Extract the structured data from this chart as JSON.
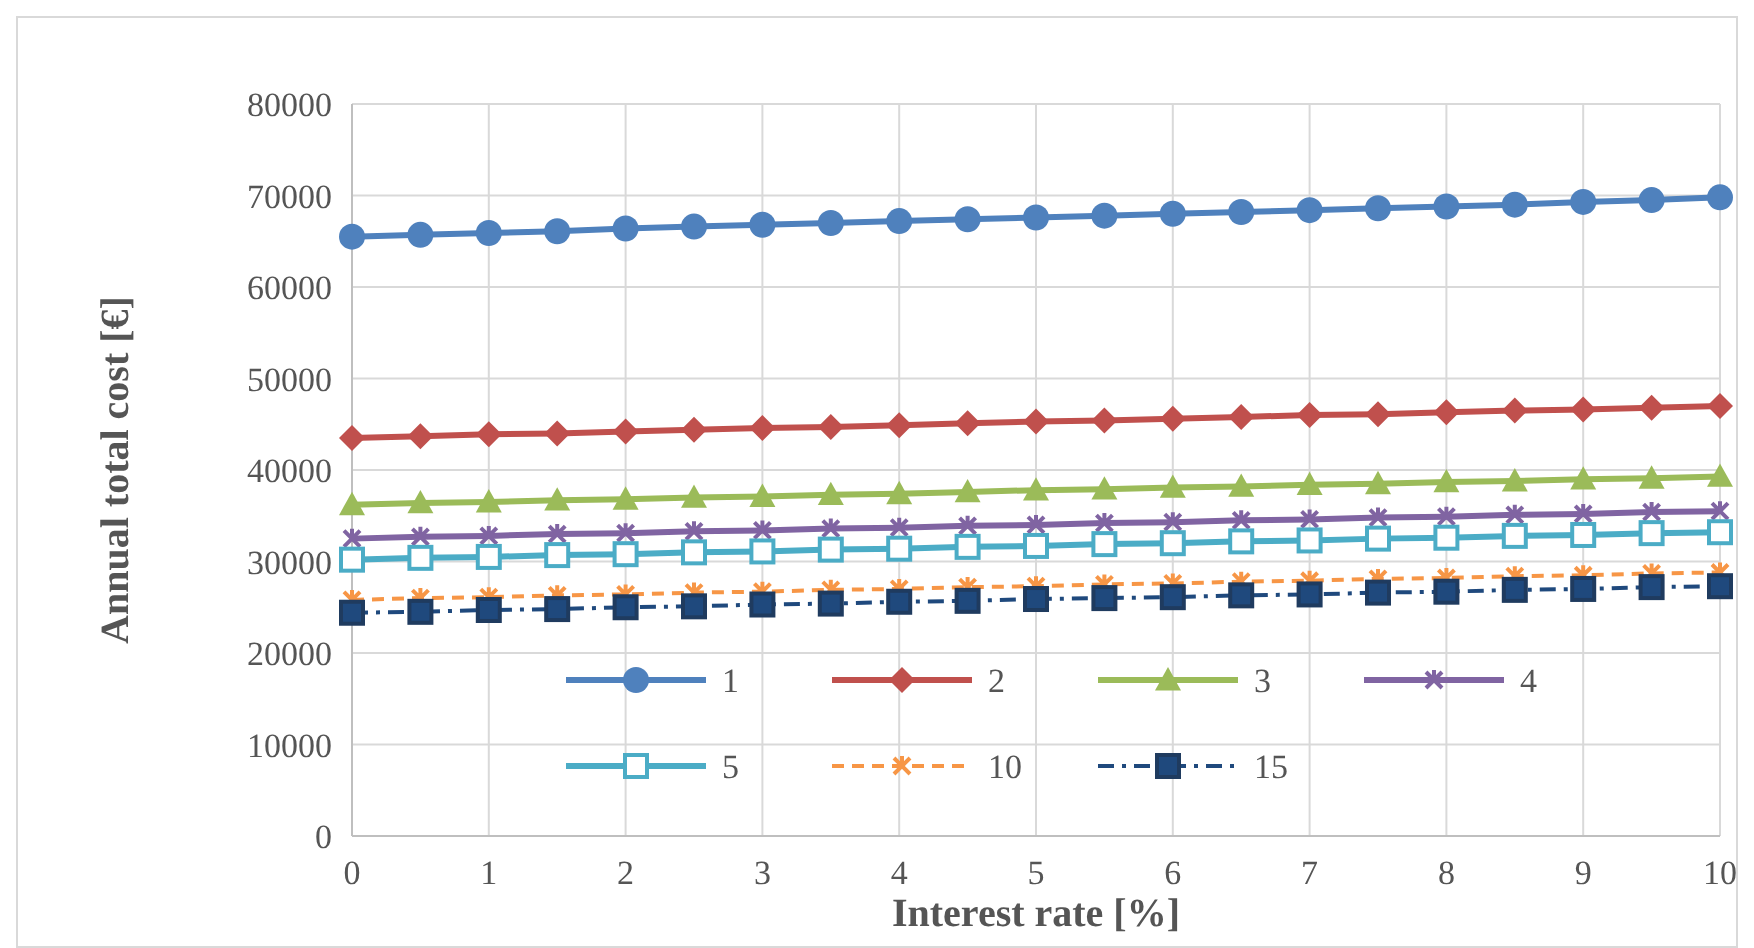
{
  "chart_data": {
    "type": "line",
    "xlabel": "Interest rate [%]",
    "ylabel": "Annual total cost [€]",
    "x": [
      0,
      0.5,
      1,
      1.5,
      2,
      2.5,
      3,
      3.5,
      4,
      4.5,
      5,
      5.5,
      6,
      6.5,
      7,
      7.5,
      8,
      8.5,
      9,
      9.5,
      10
    ],
    "xlim": [
      0,
      10
    ],
    "xticks": [
      0,
      1,
      2,
      3,
      4,
      5,
      6,
      7,
      8,
      9,
      10
    ],
    "ylim": [
      0,
      80000
    ],
    "yticks": [
      0,
      10000,
      20000,
      30000,
      40000,
      50000,
      60000,
      70000,
      80000
    ],
    "grid": true,
    "legend": "bottom",
    "series": [
      {
        "name": "1",
        "color": "#4f81bd",
        "marker": "circle",
        "line_style": "solid",
        "values": [
          65500,
          65700,
          65900,
          66100,
          66400,
          66600,
          66800,
          67000,
          67200,
          67400,
          67600,
          67800,
          68000,
          68200,
          68400,
          68600,
          68800,
          69000,
          69300,
          69500,
          69800
        ]
      },
      {
        "name": "2",
        "color": "#c0504d",
        "marker": "diamond",
        "line_style": "solid",
        "values": [
          43500,
          43700,
          43900,
          44000,
          44200,
          44400,
          44600,
          44700,
          44900,
          45100,
          45300,
          45400,
          45600,
          45800,
          46000,
          46100,
          46300,
          46500,
          46600,
          46800,
          47000
        ]
      },
      {
        "name": "3",
        "color": "#9bbb59",
        "marker": "triangle",
        "line_style": "solid",
        "values": [
          36200,
          36400,
          36500,
          36700,
          36800,
          37000,
          37100,
          37300,
          37400,
          37600,
          37800,
          37900,
          38100,
          38200,
          38400,
          38500,
          38700,
          38800,
          39000,
          39100,
          39300
        ]
      },
      {
        "name": "4",
        "color": "#8064a2",
        "marker": "cross",
        "line_style": "solid",
        "values": [
          32500,
          32700,
          32800,
          33000,
          33100,
          33300,
          33400,
          33600,
          33700,
          33900,
          34000,
          34200,
          34300,
          34500,
          34600,
          34800,
          34900,
          35100,
          35200,
          35400,
          35500
        ]
      },
      {
        "name": "5",
        "color": "#4bacc6",
        "marker": "square",
        "line_style": "solid",
        "values": [
          30200,
          30400,
          30500,
          30700,
          30800,
          31000,
          31100,
          31300,
          31400,
          31600,
          31700,
          31900,
          32000,
          32200,
          32300,
          32500,
          32600,
          32800,
          32900,
          33100,
          33200
        ]
      },
      {
        "name": "10",
        "color": "#f79646",
        "marker": "cross",
        "line_style": "dashed",
        "values": [
          25800,
          26000,
          26100,
          26300,
          26400,
          26600,
          26700,
          26900,
          27000,
          27200,
          27300,
          27500,
          27600,
          27800,
          27900,
          28100,
          28200,
          28400,
          28500,
          28700,
          28800
        ]
      },
      {
        "name": "15",
        "color": "#1f497d",
        "marker": "square",
        "line_style": "dashdot",
        "values": [
          24400,
          24500,
          24700,
          24800,
          25000,
          25100,
          25300,
          25400,
          25600,
          25700,
          25900,
          26000,
          26100,
          26300,
          26400,
          26600,
          26700,
          26900,
          27000,
          27200,
          27300
        ]
      }
    ]
  }
}
